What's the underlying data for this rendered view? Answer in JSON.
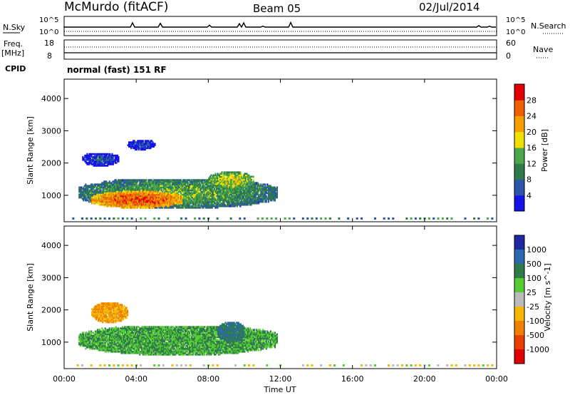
{
  "header": {
    "station": "McMurdo (fitACF)",
    "beam": "Beam 05",
    "date": "02/Jul/2014"
  },
  "status_panel": {
    "left_labels": [
      "N.Sky",
      "Freq.",
      "[MHz]",
      "CPID"
    ],
    "right_labels": [
      "N.Search",
      "Nave"
    ],
    "noise_ticks_left": [
      "10^5",
      "10^0"
    ],
    "noise_ticks_right": [
      "10^5",
      "10^0"
    ],
    "freq_ticks": [
      "18",
      "8"
    ],
    "nave_ticks": [
      "60",
      "0"
    ],
    "cpid_text": "normal (fast) 151 RF"
  },
  "colors": {
    "power_scale": [
      "#1414e6",
      "#2a55a8",
      "#2f7a4a",
      "#4aa84a",
      "#f0e000",
      "#f5a000",
      "#f06000",
      "#e00000"
    ],
    "velocity_scale": [
      "#1e28a0",
      "#2a68b0",
      "#2f7a4a",
      "#55cc33",
      "#bbbbbb",
      "#f5b800",
      "#f08000",
      "#e84000",
      "#e00000"
    ]
  },
  "chart_data": [
    {
      "type": "heatmap",
      "title": "Power",
      "xlabel": "Time UT",
      "ylabel": "Slant Range [km]",
      "xlim": [
        "00:00",
        "24:00"
      ],
      "ylim": [
        180,
        4600
      ],
      "x_ticks": [
        "00:00",
        "04:00",
        "08:00",
        "12:00",
        "16:00",
        "20:00",
        "00:00"
      ],
      "y_ticks": [
        1000,
        2000,
        3000,
        4000
      ],
      "colorbar": {
        "label": "Power [dB]",
        "ticks": [
          4,
          8,
          12,
          16,
          20,
          24,
          28
        ],
        "range": [
          0,
          32
        ]
      },
      "regions": [
        {
          "t": [
            0.8,
            11.8
          ],
          "r": [
            600,
            1500
          ],
          "value": 14
        },
        {
          "t": [
            1.5,
            6.5
          ],
          "r": [
            600,
            1100
          ],
          "value": 27
        },
        {
          "t": [
            1.0,
            3.0
          ],
          "r": [
            1900,
            2300
          ],
          "value": 6
        },
        {
          "t": [
            8.0,
            10.5
          ],
          "r": [
            1200,
            1700
          ],
          "value": 18
        },
        {
          "t": [
            3.5,
            5.0
          ],
          "r": [
            2400,
            2700
          ],
          "value": 5
        }
      ]
    },
    {
      "type": "heatmap",
      "title": "Velocity",
      "xlabel": "Time UT",
      "ylabel": "Slant Range [km]",
      "xlim": [
        "00:00",
        "24:00"
      ],
      "ylim": [
        180,
        4600
      ],
      "x_ticks": [
        "00:00",
        "04:00",
        "08:00",
        "12:00",
        "16:00",
        "20:00",
        "00:00"
      ],
      "y_ticks": [
        1000,
        2000,
        3000,
        4000
      ],
      "colorbar": {
        "label": "Velocity [m s^-1]",
        "ticks": [
          "1000",
          "500",
          "100",
          "25",
          "-25",
          "-100",
          "-500",
          "-1000"
        ]
      },
      "regions": [
        {
          "t": [
            0.8,
            11.8
          ],
          "r": [
            600,
            1500
          ],
          "value": 100
        },
        {
          "t": [
            1.5,
            3.5
          ],
          "r": [
            1600,
            2200
          ],
          "value": -100
        },
        {
          "t": [
            8.5,
            10.0
          ],
          "r": [
            1000,
            1600
          ],
          "value": 500
        }
      ]
    }
  ]
}
